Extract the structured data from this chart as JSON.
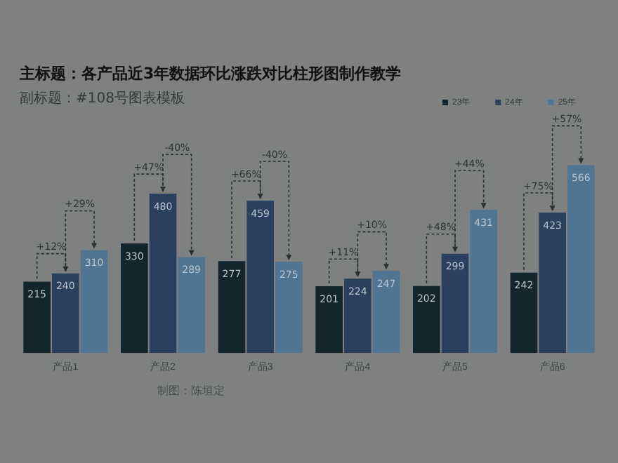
{
  "chart_data": {
    "type": "bar",
    "title": "主标题：各产品近3年数据环比涨跌对比柱形图制作教学",
    "subtitle": "副标题：#108号图表模板",
    "categories": [
      "产品1",
      "产品2",
      "产品3",
      "产品4",
      "产品5",
      "产品6"
    ],
    "series": [
      {
        "name": "23年",
        "color": "#13262e",
        "values": [
          215,
          330,
          277,
          201,
          202,
          242
        ]
      },
      {
        "name": "24年",
        "color": "#2b3f5f",
        "values": [
          240,
          480,
          459,
          224,
          299,
          423
        ]
      },
      {
        "name": "25年",
        "color": "#4f7592",
        "values": [
          310,
          289,
          275,
          247,
          431,
          566
        ]
      }
    ],
    "annotations": [
      "+12%",
      "+29%",
      "+47%",
      "-40%",
      "+66%",
      "-40%",
      "+11%",
      "+10%",
      "+48%",
      "+44%",
      "+75%",
      "+57%",
      "制图：陈垣定"
    ],
    "data_labels": true,
    "legend": "top right",
    "grid": false
  }
}
